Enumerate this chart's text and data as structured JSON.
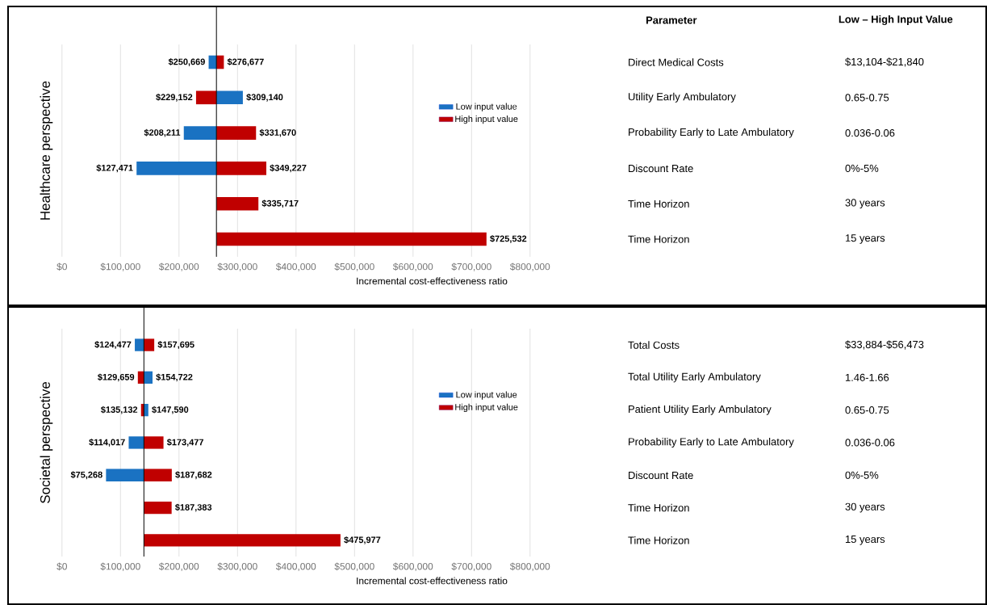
{
  "chart_data": [
    {
      "type": "bar",
      "orientation": "horizontal",
      "ylabel": "Healthcare perspective",
      "xlabel": "Incremental cost-effectiveness ratio",
      "categories": [
        "Direct Medical Costs",
        "Utility Early Ambulatory",
        "Probability Early to Late Ambulatory",
        "Discount Rate",
        "Time Horizon",
        "Time Horizon"
      ],
      "series": [
        {
          "name": "Low input value",
          "color": "#1a72c2",
          "base": [
            264000,
            264000,
            264000,
            264000,
            null,
            null
          ],
          "values": [
            -13331,
            45140,
            -55789,
            -136529,
            null,
            null
          ],
          "value_labels": [
            "$250,669",
            "$309,140",
            "$208,211",
            "$127,471",
            null,
            null
          ]
        },
        {
          "name": "High input value",
          "color": "#c00000",
          "base": [
            264000,
            264000,
            264000,
            264000,
            264000,
            264000
          ],
          "values": [
            12677,
            -34848,
            67670,
            85227,
            71717,
            461532
          ],
          "value_labels": [
            "$276,677",
            "$229,152",
            "$331,670",
            "$349,227",
            "$335,717",
            "$725,532"
          ]
        }
      ],
      "xlim": [
        0,
        800000
      ],
      "xticks": [
        {
          "value": 0,
          "label": "$0"
        },
        {
          "value": 100000,
          "label": "$100,000"
        },
        {
          "value": 200000,
          "label": "$200,000"
        },
        {
          "value": 300000,
          "label": "$300,000"
        },
        {
          "value": 400000,
          "label": "$400,000"
        },
        {
          "value": 500000,
          "label": "$500,000"
        },
        {
          "value": 600000,
          "label": "$600,000"
        },
        {
          "value": 700000,
          "label": "$700,000"
        },
        {
          "value": 800000,
          "label": "$800,000"
        }
      ],
      "grid": "x",
      "legend": "right",
      "ref_lines": [
        {
          "axis": "x",
          "value": 264000
        }
      ],
      "annotations": [
        "Parameter",
        "Low – High Input Value",
        "$13,104-$21,840",
        "0.65-0.75",
        "0.036-0.06",
        "0%-5%",
        "30 years",
        "15 years"
      ]
    },
    {
      "type": "bar",
      "orientation": "horizontal",
      "ylabel": "Societal perspective",
      "xlabel": "Incremental cost-effectiveness ratio",
      "categories": [
        "Total Costs",
        "Total Utility Early Ambulatory",
        "Patient Utility Early Ambulatory",
        "Probability Early to Late Ambulatory",
        "Discount Rate",
        "Time Horizon",
        "Time Horizon"
      ],
      "series": [
        {
          "name": "Low input value",
          "color": "#1a72c2",
          "base": [
            140000,
            140000,
            140000,
            140000,
            140000,
            null,
            null
          ],
          "values": [
            -15523,
            14722,
            7590,
            -25983,
            -64732,
            null,
            null
          ],
          "value_labels": [
            "$124,477",
            "$154,722",
            "$147,590",
            "$114,017",
            "$75,268",
            null,
            null
          ]
        },
        {
          "name": "High input value",
          "color": "#c00000",
          "base": [
            140000,
            140000,
            140000,
            140000,
            140000,
            140000,
            140000
          ],
          "values": [
            17695,
            -10341,
            -4868,
            33477,
            47682,
            47383,
            335977
          ],
          "value_labels": [
            "$157,695",
            "$129,659",
            "$135,132",
            "$173,477",
            "$187,682",
            "$187,383",
            "$475,977"
          ]
        }
      ],
      "xlim": [
        0,
        800000
      ],
      "xticks": [
        {
          "value": 0,
          "label": "$0"
        },
        {
          "value": 100000,
          "label": "$100,000"
        },
        {
          "value": 200000,
          "label": "$200,000"
        },
        {
          "value": 300000,
          "label": "$300,000"
        },
        {
          "value": 400000,
          "label": "$400,000"
        },
        {
          "value": 500000,
          "label": "$500,000"
        },
        {
          "value": 600000,
          "label": "$600,000"
        },
        {
          "value": 700000,
          "label": "$700,000"
        },
        {
          "value": 800000,
          "label": "$800,000"
        }
      ],
      "grid": "x",
      "legend": "right",
      "ref_lines": [
        {
          "axis": "x",
          "value": 140000
        }
      ],
      "annotations": [
        "$33,884-$56,473",
        "1.46-1.66",
        "0.65-0.75",
        "0.036-0.06",
        "0%-5%",
        "30 years",
        "15 years"
      ]
    }
  ]
}
